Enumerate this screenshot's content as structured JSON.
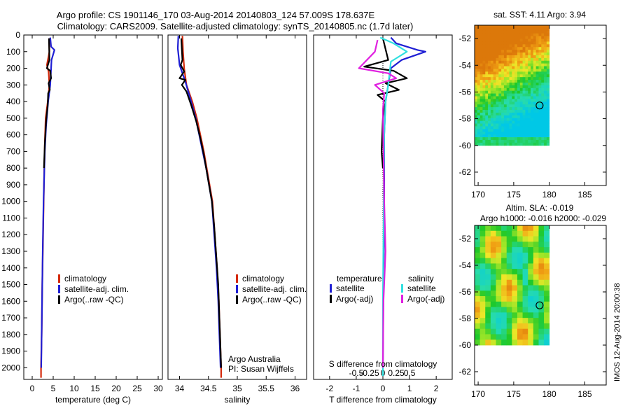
{
  "header": {
    "line1": "Argo profile: CS 1901146_170 03-Aug-2014 20140803_124 57.009S 178.637E",
    "line2": "Climatology: CARS2009. Satellite-adjusted climatology: synTS_20140805.nc (1.7d later)"
  },
  "stamp": "IMOS 12-Aug-2014 20:00:38",
  "colors": {
    "climatology": "#d42a0c",
    "satellite": "#1f1fd4",
    "argo": "#000000",
    "satellite_s": "#30e0e0",
    "argo_s": "#e020e0"
  },
  "chart_data": [
    {
      "type": "line",
      "id": "temperature",
      "xlabel": "temperature (deg C)",
      "ylabel": "",
      "xlim": [
        -2,
        31
      ],
      "ylim": [
        2070,
        0
      ],
      "y_ticks": [
        0,
        100,
        200,
        300,
        400,
        500,
        600,
        700,
        800,
        900,
        1000,
        1100,
        1200,
        1300,
        1400,
        1500,
        1600,
        1700,
        1800,
        1900,
        2000
      ],
      "x_ticks": [
        0,
        5,
        10,
        15,
        20,
        25,
        30
      ],
      "legend": [
        "climatology",
        "satellite-adj. clim.",
        "Argo(..raw -QC)"
      ],
      "legend_position": "lower-middle",
      "series": [
        {
          "name": "climatology",
          "color": "#d42a0c",
          "points": [
            [
              4.0,
              20
            ],
            [
              4.1,
              100
            ],
            [
              3.5,
              180
            ],
            [
              3.9,
              220
            ],
            [
              4.1,
              300
            ],
            [
              3.7,
              400
            ],
            [
              3.2,
              500
            ],
            [
              3.0,
              650
            ],
            [
              2.8,
              900
            ],
            [
              2.6,
              1200
            ],
            [
              2.4,
              1500
            ],
            [
              2.25,
              1800
            ],
            [
              2.1,
              2000
            ],
            [
              2.1,
              2060
            ]
          ]
        },
        {
          "name": "satellite-adj. clim.",
          "color": "#1f1fd4",
          "points": [
            [
              4.3,
              15
            ],
            [
              4.5,
              70
            ],
            [
              5.3,
              90
            ],
            [
              4.6,
              150
            ],
            [
              4.3,
              300
            ],
            [
              3.8,
              400
            ],
            [
              3.3,
              550
            ],
            [
              3.0,
              700
            ],
            [
              2.7,
              1000
            ],
            [
              2.5,
              1300
            ],
            [
              2.35,
              1600
            ],
            [
              2.2,
              1900
            ],
            [
              2.15,
              2000
            ]
          ]
        },
        {
          "name": "Argo(..raw -QC)",
          "color": "#000000",
          "points": [
            [
              4.0,
              20
            ],
            [
              4.1,
              150
            ],
            [
              3.5,
              200
            ],
            [
              4.3,
              215
            ],
            [
              4.5,
              260
            ],
            [
              3.9,
              290
            ],
            [
              4.2,
              330
            ],
            [
              3.8,
              350
            ],
            [
              3.7,
              420
            ],
            [
              3.3,
              520
            ],
            [
              3.0,
              660
            ],
            [
              2.8,
              800
            ]
          ]
        }
      ]
    },
    {
      "type": "line",
      "id": "salinity",
      "xlabel": "salinity",
      "xlim": [
        33.8,
        36.2
      ],
      "ylim": [
        2070,
        0
      ],
      "x_ticks": [
        34,
        34.5,
        35,
        35.5,
        36
      ],
      "legend": [
        "climatology",
        "satellite-adj. clim.",
        "Argo(..raw -QC)"
      ],
      "legend_position": "lower-right",
      "annotation": [
        "Argo Australia",
        "PI: Susan Wijffels"
      ],
      "series": [
        {
          "name": "climatology",
          "color": "#d42a0c",
          "points": [
            [
              34.05,
              5
            ],
            [
              34.06,
              100
            ],
            [
              34.08,
              200
            ],
            [
              34.12,
              300
            ],
            [
              34.22,
              400
            ],
            [
              34.3,
              500
            ],
            [
              34.36,
              600
            ],
            [
              34.42,
              700
            ],
            [
              34.47,
              800
            ],
            [
              34.52,
              900
            ],
            [
              34.57,
              1000
            ],
            [
              34.61,
              1200
            ],
            [
              34.65,
              1400
            ],
            [
              34.68,
              1600
            ],
            [
              34.7,
              1800
            ],
            [
              34.72,
              2000
            ],
            [
              34.72,
              2060
            ]
          ]
        },
        {
          "name": "satellite-adj. clim.",
          "color": "#1f1fd4",
          "points": [
            [
              33.98,
              5
            ],
            [
              33.97,
              80
            ],
            [
              34.0,
              180
            ],
            [
              34.1,
              280
            ],
            [
              34.2,
              400
            ],
            [
              34.28,
              500
            ],
            [
              34.34,
              600
            ],
            [
              34.4,
              700
            ],
            [
              34.46,
              800
            ],
            [
              34.51,
              900
            ],
            [
              34.56,
              1000
            ],
            [
              34.6,
              1200
            ],
            [
              34.64,
              1400
            ],
            [
              34.67,
              1600
            ],
            [
              34.69,
              1800
            ],
            [
              34.71,
              2000
            ]
          ]
        },
        {
          "name": "Argo(..raw -QC)",
          "color": "#000000",
          "points": [
            [
              34.03,
              20
            ],
            [
              34.05,
              150
            ],
            [
              34.02,
              180
            ],
            [
              34.08,
              220
            ],
            [
              34.0,
              260
            ],
            [
              34.1,
              270
            ],
            [
              34.04,
              300
            ],
            [
              34.12,
              340
            ],
            [
              34.2,
              420
            ],
            [
              34.29,
              520
            ],
            [
              34.36,
              620
            ],
            [
              34.42,
              720
            ],
            [
              34.47,
              820
            ],
            [
              34.52,
              920
            ],
            [
              34.56,
              1000
            ],
            [
              34.6,
              1150
            ],
            [
              34.64,
              1350
            ],
            [
              34.67,
              1500
            ],
            [
              34.69,
              1700
            ],
            [
              34.7,
              1800
            ],
            [
              34.71,
              1900
            ],
            [
              34.72,
              2000
            ]
          ]
        }
      ]
    },
    {
      "type": "line",
      "id": "differences",
      "xlabel": "T difference from climatology",
      "xlabel2": "S difference from climatology",
      "xlim": [
        -2.6,
        2.6
      ],
      "ylim": [
        2070,
        0
      ],
      "x_ticks": [
        -2,
        -1,
        0,
        1,
        2
      ],
      "x2_ticks": [
        "-0.5",
        "-0.25",
        "0",
        "0.25",
        "0.5"
      ],
      "legend_headers": [
        "temperature",
        "salinity"
      ],
      "legend": [
        "satellite",
        "Argo(-adj)",
        "satellite",
        "Argo(-adj)"
      ],
      "legend_position": "lower-middle",
      "series": [
        {
          "name": "satellite",
          "color": "#1f1fd4",
          "points": [
            [
              0.3,
              15
            ],
            [
              0.5,
              50
            ],
            [
              1.3,
              90
            ],
            [
              1.6,
              100
            ],
            [
              0.7,
              150
            ],
            [
              0.3,
              200
            ],
            [
              0.2,
              300
            ],
            [
              0.1,
              400
            ],
            [
              0.05,
              600
            ],
            [
              0.05,
              1000
            ],
            [
              0.02,
              1500
            ],
            [
              0.0,
              2000
            ]
          ]
        },
        {
          "name": "Argo(-adj)",
          "color": "#000000",
          "points": [
            [
              0.0,
              20
            ],
            [
              0.2,
              150
            ],
            [
              -0.7,
              190
            ],
            [
              0.4,
              215
            ],
            [
              0.9,
              260
            ],
            [
              0.1,
              290
            ],
            [
              0.6,
              330
            ],
            [
              -0.2,
              360
            ],
            [
              0.1,
              400
            ],
            [
              0.0,
              500
            ],
            [
              -0.05,
              700
            ],
            [
              0.0,
              800
            ]
          ]
        },
        {
          "name": "satellite",
          "color": "#30e0e0",
          "points": [
            [
              -0.1,
              15
            ],
            [
              0.4,
              50
            ],
            [
              0.9,
              100
            ],
            [
              0.3,
              160
            ],
            [
              0.2,
              300
            ],
            [
              0.1,
              400
            ],
            [
              0.05,
              600
            ],
            [
              0.04,
              800
            ],
            [
              0.02,
              1200
            ],
            [
              0.0,
              1600
            ],
            [
              0.0,
              2050
            ]
          ]
        },
        {
          "name": "Argo(-adj)",
          "color": "#e020e0",
          "points": [
            [
              -0.2,
              30
            ],
            [
              -0.3,
              100
            ],
            [
              -0.9,
              200
            ],
            [
              0.2,
              230
            ],
            [
              0.5,
              260
            ],
            [
              -0.3,
              300
            ],
            [
              0.05,
              350
            ],
            [
              0.0,
              450
            ],
            [
              0.02,
              700
            ],
            [
              0.05,
              1000
            ],
            [
              0.1,
              1300
            ],
            [
              0.02,
              1600
            ],
            [
              0.0,
              2000
            ]
          ]
        }
      ]
    },
    {
      "type": "heatmap",
      "id": "sst_map",
      "title": "sat. SST: 4.11  Argo: 3.94",
      "xlim": [
        169.5,
        188
      ],
      "ylim": [
        -63,
        -51
      ],
      "x_ticks": [
        170,
        175,
        180,
        185
      ],
      "y_ticks": [
        -52,
        -54,
        -56,
        -58,
        -60,
        -62
      ],
      "data_extent": {
        "lon": [
          169.5,
          180
        ],
        "lat": [
          -60,
          -51
        ]
      },
      "marker": {
        "lon": 178.637,
        "lat": -57.009
      }
    },
    {
      "type": "heatmap",
      "id": "sla_map",
      "title": "Altim. SLA: -0.019",
      "subtitle": "Argo h1000: -0.016  h2000: -0.029",
      "xlim": [
        169.5,
        188
      ],
      "ylim": [
        -63,
        -51
      ],
      "x_ticks": [
        170,
        175,
        180,
        185
      ],
      "y_ticks": [
        -52,
        -54,
        -56,
        -58,
        -60,
        -62
      ],
      "data_extent": {
        "lon": [
          169.5,
          180
        ],
        "lat": [
          -60,
          -51
        ]
      },
      "marker": {
        "lon": 178.637,
        "lat": -57.009
      }
    }
  ]
}
